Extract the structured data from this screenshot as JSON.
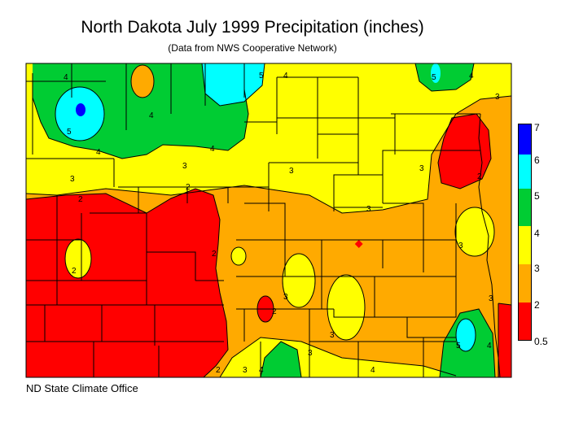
{
  "title": "North Dakota July 1999 Precipitation (inches)",
  "subtitle": "(Data from NWS Cooperative Network)",
  "credit": "ND State Climate Office",
  "legend": [
    {
      "label": "7",
      "color": "#0000ff"
    },
    {
      "label": "6",
      "color": "#00ffff"
    },
    {
      "label": "5",
      "color": "#00cc33"
    },
    {
      "label": "4",
      "color": "#ffff00"
    },
    {
      "label": "3",
      "color": "#ffaa00"
    },
    {
      "label": "2",
      "color": "#ff0000"
    },
    {
      "label": "0.5",
      "color": ""
    }
  ],
  "contour_labels": [
    "2",
    "3",
    "4",
    "5"
  ]
}
